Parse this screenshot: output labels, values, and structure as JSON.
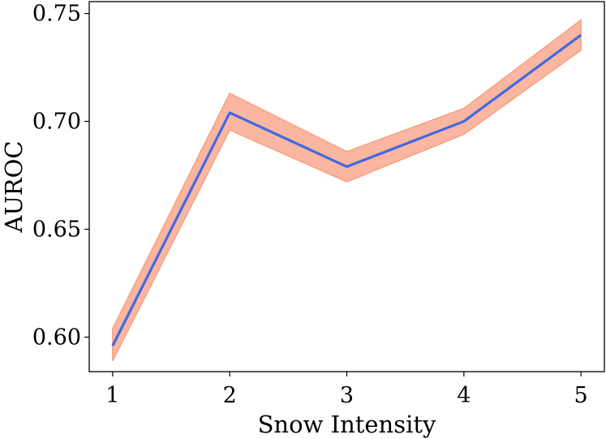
{
  "chart_data": {
    "type": "line",
    "title": "",
    "xlabel": "Snow Intensity",
    "ylabel": "AUROC",
    "x": [
      1,
      2,
      3,
      4,
      5
    ],
    "x_ticks": [
      "1",
      "2",
      "3",
      "4",
      "5"
    ],
    "y_ticks": [
      "0.60",
      "0.65",
      "0.70",
      "0.75"
    ],
    "y_tick_values": [
      0.6,
      0.65,
      0.7,
      0.75
    ],
    "xlim": [
      0.8,
      5.2
    ],
    "ylim": [
      0.584,
      0.7555
    ],
    "series": [
      {
        "name": "AUROC",
        "values": [
          0.596,
          0.704,
          0.679,
          0.7,
          0.74
        ],
        "lower": [
          0.589,
          0.696,
          0.672,
          0.694,
          0.733
        ],
        "upper": [
          0.604,
          0.713,
          0.686,
          0.706,
          0.747
        ],
        "line_color": "#4169e1",
        "band_color": "#f9a98f",
        "band_edge_color": "#f7a07f"
      }
    ],
    "grid": false,
    "legend": "none"
  }
}
